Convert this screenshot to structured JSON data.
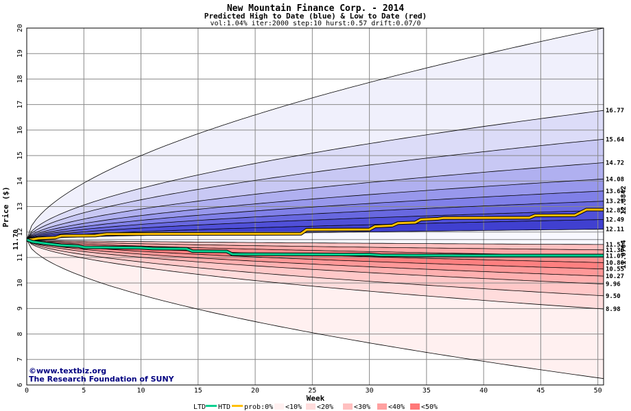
{
  "chart_data": {
    "type": "area",
    "title": "New Mountain Finance Corp. - 2014",
    "subtitle": "Predicted High to Date (blue) &  Low to Date (red)",
    "params": "vol:1.04% iter:2000 step:10 hurst:0.57 drift:0.07/0",
    "xlabel": "Week",
    "ylabel": "Price ($)",
    "xlim": [
      0,
      50.5
    ],
    "ylim": [
      6,
      20
    ],
    "xticks": [
      0,
      5,
      10,
      15,
      20,
      25,
      30,
      35,
      40,
      45,
      50
    ],
    "yticks": [
      6,
      7,
      8,
      9,
      10,
      11,
      12,
      13,
      14,
      15,
      16,
      17,
      18,
      19,
      20
    ],
    "grid": true,
    "start_price": 11.7,
    "start_label": "11.70",
    "quantile_curves_high": [
      {
        "end": 20.0,
        "label": ""
      },
      {
        "end": 16.77,
        "label": "16.77"
      },
      {
        "end": 15.64,
        "label": "15.64"
      },
      {
        "end": 14.72,
        "label": "14.72"
      },
      {
        "end": 14.08,
        "label": "14.08"
      },
      {
        "end": 13.61,
        "label": "13.61"
      },
      {
        "end": 13.21,
        "label": "13.21"
      },
      {
        "end": 12.85,
        "label": "12.85"
      },
      {
        "end": 12.49,
        "label": "12.49"
      },
      {
        "end": 12.11,
        "label": "12.11"
      }
    ],
    "quantile_curves_low": [
      {
        "end": 11.51,
        "label": "11.51"
      },
      {
        "end": 11.3,
        "label": "11.30"
      },
      {
        "end": 11.07,
        "label": "11.07"
      },
      {
        "end": 10.8,
        "label": "10.80"
      },
      {
        "end": 10.55,
        "label": "10.55"
      },
      {
        "end": 10.27,
        "label": "10.27"
      },
      {
        "end": 9.96,
        "label": "9.96"
      },
      {
        "end": 9.5,
        "label": "9.50"
      },
      {
        "end": 8.98,
        "label": "8.98"
      },
      {
        "end": 6.25,
        "label": ""
      }
    ],
    "high_to_date": {
      "name": "HTD",
      "end_label": "12.8842",
      "color": "#ffc000",
      "points": [
        [
          0,
          11.7
        ],
        [
          0.5,
          11.71
        ],
        [
          1.0,
          11.75
        ],
        [
          2.5,
          11.78
        ],
        [
          3.0,
          11.85
        ],
        [
          6.0,
          11.86
        ],
        [
          7.0,
          11.92
        ],
        [
          24.0,
          11.93
        ],
        [
          24.5,
          12.09
        ],
        [
          30.0,
          12.1
        ],
        [
          30.5,
          12.22
        ],
        [
          32.0,
          12.25
        ],
        [
          32.5,
          12.35
        ],
        [
          34.0,
          12.37
        ],
        [
          34.5,
          12.49
        ],
        [
          36.0,
          12.52
        ],
        [
          36.5,
          12.55
        ],
        [
          44.0,
          12.56
        ],
        [
          44.5,
          12.65
        ],
        [
          48.0,
          12.66
        ],
        [
          48.5,
          12.77
        ],
        [
          49.0,
          12.88
        ],
        [
          50.5,
          12.88
        ]
      ]
    },
    "low_to_date": {
      "name": "LTD",
      "end_label": "11.0764",
      "color": "#00d090",
      "points": [
        [
          0,
          11.7
        ],
        [
          0.5,
          11.62
        ],
        [
          1.5,
          11.56
        ],
        [
          3.0,
          11.48
        ],
        [
          4.5,
          11.45
        ],
        [
          5.0,
          11.4
        ],
        [
          10.0,
          11.38
        ],
        [
          11.0,
          11.35
        ],
        [
          14.0,
          11.34
        ],
        [
          14.5,
          11.25
        ],
        [
          17.5,
          11.24
        ],
        [
          18.0,
          11.13
        ],
        [
          30.0,
          11.12
        ],
        [
          31.0,
          11.09
        ],
        [
          38.0,
          11.08
        ],
        [
          50.5,
          11.08
        ]
      ]
    },
    "colors": {
      "high_bands": [
        "#f0f0fc",
        "#dcdcf8",
        "#c8c8f4",
        "#b0b0f0",
        "#9898ec",
        "#8080e8",
        "#6868e0",
        "#5050d8",
        "#4040d0"
      ],
      "low_bands": [
        "#ffc0c0",
        "#ffa8a8",
        "#ff9090",
        "#ff8080",
        "#ff9898",
        "#ffb0b0",
        "#ffc8c8",
        "#ffdcdc",
        "#fff0f0"
      ],
      "htd_label": "#b8860b",
      "ltd_label": "#008060",
      "axis_text": "#000000"
    }
  },
  "legend": {
    "ltd": "LTD",
    "htd": "HTD",
    "prob_prefix": "prob:0%",
    "items": [
      "<10%",
      "<20%",
      "<30%",
      "<40%",
      "<50%"
    ],
    "swatch_colors": [
      "#fff0f0",
      "#ffdcdc",
      "#ffc0c0",
      "#ffa0a0",
      "#ff7878"
    ],
    "swatch_colors_blue": [
      "#f4f4fc",
      "#e0e0f8",
      "#c8c8f4",
      "#a8a8ec",
      "#8080e0"
    ]
  },
  "credits": {
    "line1": "©www.textbiz.org",
    "line2": "The Research Foundation of SUNY"
  }
}
